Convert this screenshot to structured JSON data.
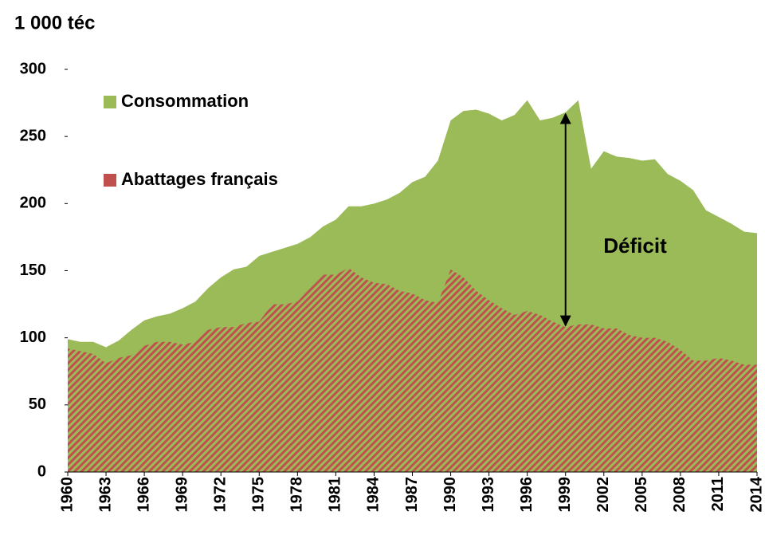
{
  "chart_data": {
    "type": "area",
    "y_label": "1 000 téc",
    "annotation": "Déficit",
    "x": [
      1960,
      1961,
      1962,
      1963,
      1964,
      1965,
      1966,
      1967,
      1968,
      1969,
      1970,
      1971,
      1972,
      1973,
      1974,
      1975,
      1976,
      1977,
      1978,
      1979,
      1980,
      1981,
      1982,
      1983,
      1984,
      1985,
      1986,
      1987,
      1988,
      1989,
      1990,
      1991,
      1992,
      1993,
      1994,
      1995,
      1996,
      1997,
      1998,
      1999,
      2000,
      2001,
      2002,
      2003,
      2004,
      2005,
      2006,
      2007,
      2008,
      2009,
      2010,
      2011,
      2012,
      2013,
      2014
    ],
    "series": [
      {
        "name": "Consommation",
        "color": "#9bbb59",
        "values": [
          99,
          97,
          97,
          93,
          98,
          106,
          113,
          116,
          118,
          122,
          127,
          137,
          145,
          151,
          153,
          161,
          164,
          167,
          170,
          175,
          183,
          188,
          198,
          198,
          200,
          203,
          208,
          216,
          220,
          232,
          262,
          269,
          270,
          267,
          262,
          266,
          277,
          262,
          264,
          268,
          277,
          226,
          239,
          235,
          234,
          232,
          233,
          222,
          217,
          210,
          195,
          190,
          185,
          179,
          178
        ]
      },
      {
        "name": "Abattages français",
        "color": "#c0504d",
        "values": [
          92,
          90,
          88,
          81,
          85,
          87,
          94,
          97,
          97,
          95,
          97,
          106,
          108,
          108,
          111,
          112,
          125,
          125,
          127,
          137,
          147,
          147,
          152,
          145,
          141,
          140,
          135,
          133,
          128,
          126,
          151,
          145,
          135,
          128,
          122,
          117,
          120,
          117,
          112,
          108,
          110,
          110,
          107,
          107,
          102,
          100,
          100,
          97,
          91,
          83,
          83,
          85,
          83,
          80,
          80
        ]
      }
    ],
    "xlim": [
      1960,
      2014
    ],
    "xticks": [
      1960,
      1963,
      1966,
      1969,
      1972,
      1975,
      1978,
      1981,
      1984,
      1987,
      1990,
      1993,
      1996,
      1999,
      2002,
      2005,
      2008,
      2011,
      2014
    ],
    "ylim": [
      0,
      300
    ],
    "yticks": [
      0,
      50,
      100,
      150,
      200,
      250,
      300
    ]
  }
}
